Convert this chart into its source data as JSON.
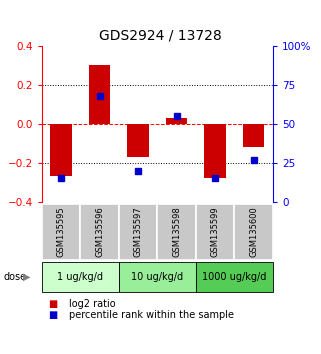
{
  "title": "GDS2924 / 13728",
  "samples": [
    "GSM135595",
    "GSM135596",
    "GSM135597",
    "GSM135598",
    "GSM135599",
    "GSM135600"
  ],
  "log2_ratio": [
    -0.27,
    0.3,
    -0.17,
    0.03,
    -0.28,
    -0.12
  ],
  "percentile_rank": [
    15,
    68,
    20,
    55,
    15,
    27
  ],
  "ylim_left": [
    -0.4,
    0.4
  ],
  "ylim_right": [
    0,
    100
  ],
  "yticks_left": [
    -0.4,
    -0.2,
    0.0,
    0.2,
    0.4
  ],
  "yticks_right": [
    0,
    25,
    50,
    75,
    100
  ],
  "ytick_labels_right": [
    "0",
    "25",
    "50",
    "75",
    "100%"
  ],
  "dotted_lines": [
    -0.2,
    0.2
  ],
  "bar_color": "#cc0000",
  "dot_color": "#0000cc",
  "dose_groups": [
    {
      "label": "1 ug/kg/d",
      "indices": [
        0,
        1
      ],
      "color": "#ccffcc"
    },
    {
      "label": "10 ug/kg/d",
      "indices": [
        2,
        3
      ],
      "color": "#99ee99"
    },
    {
      "label": "1000 ug/kg/d",
      "indices": [
        4,
        5
      ],
      "color": "#55cc55"
    }
  ],
  "dose_label": "dose",
  "legend_red": "log2 ratio",
  "legend_blue": "percentile rank within the sample",
  "bar_width": 0.55,
  "dot_size": 5,
  "sample_box_color": "#c8c8c8",
  "title_fontsize": 10,
  "axis_fontsize": 7.5,
  "sample_fontsize": 6,
  "dose_fontsize": 7,
  "legend_fontsize": 7
}
